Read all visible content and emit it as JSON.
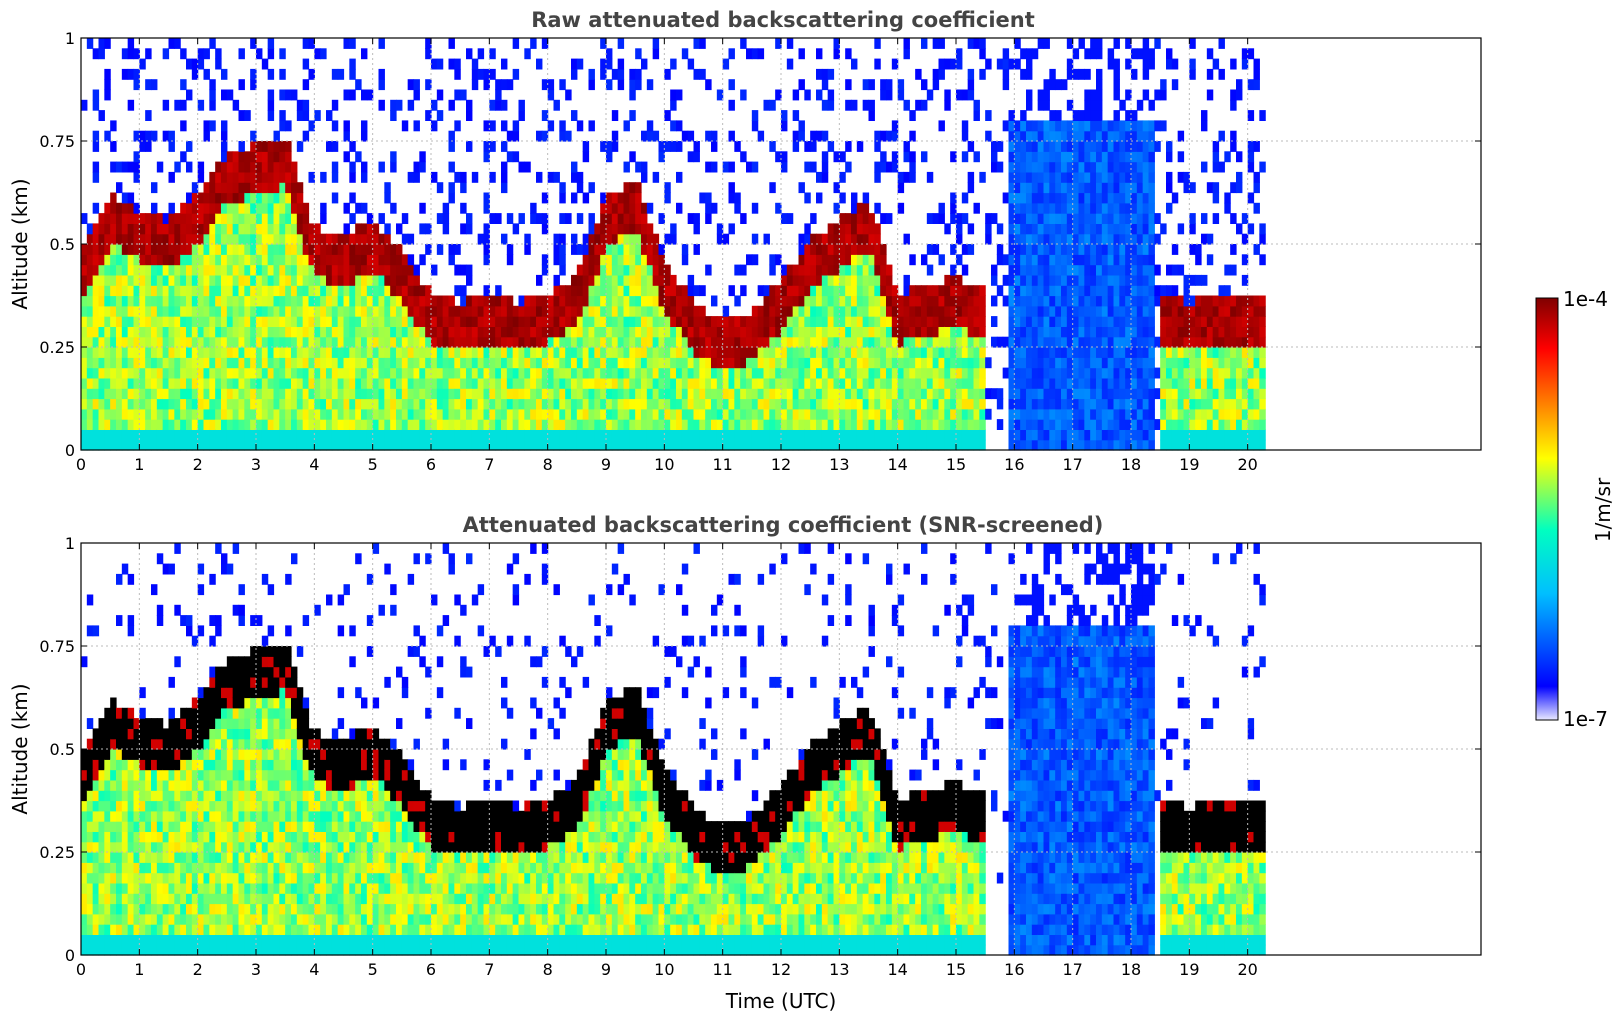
{
  "chart_data": [
    {
      "type": "heatmap",
      "title": "Raw attenuated backscattering coefficient",
      "xlabel": "",
      "ylabel": "Altitude (km)",
      "xlim": [
        0,
        24
      ],
      "ylim": [
        0,
        1
      ],
      "xticks": [
        "0",
        "1",
        "2",
        "3",
        "4",
        "5",
        "6",
        "7",
        "8",
        "9",
        "10",
        "11",
        "12",
        "13",
        "14",
        "15",
        "16",
        "17",
        "18",
        "19",
        "20"
      ],
      "yticks": [
        "0",
        "0.25",
        "0.5",
        "0.75",
        "1"
      ],
      "grid": true,
      "data_end_time": 20.3,
      "layer_altitude_km": [
        [
          0.0,
          0.42
        ],
        [
          0.5,
          0.56
        ],
        [
          1.0,
          0.52
        ],
        [
          1.5,
          0.5
        ],
        [
          2.0,
          0.56
        ],
        [
          2.5,
          0.66
        ],
        [
          3.0,
          0.68
        ],
        [
          3.5,
          0.7
        ],
        [
          4.0,
          0.48
        ],
        [
          4.5,
          0.46
        ],
        [
          5.0,
          0.5
        ],
        [
          5.5,
          0.42
        ],
        [
          6.0,
          0.32
        ],
        [
          6.5,
          0.3
        ],
        [
          7.0,
          0.32
        ],
        [
          7.5,
          0.3
        ],
        [
          8.0,
          0.32
        ],
        [
          8.5,
          0.36
        ],
        [
          9.0,
          0.55
        ],
        [
          9.5,
          0.6
        ],
        [
          10.0,
          0.4
        ],
        [
          10.5,
          0.3
        ],
        [
          11.0,
          0.25
        ],
        [
          11.5,
          0.28
        ],
        [
          12.0,
          0.35
        ],
        [
          12.5,
          0.45
        ],
        [
          13.0,
          0.5
        ],
        [
          13.5,
          0.55
        ],
        [
          14.0,
          0.32
        ],
        [
          14.5,
          0.34
        ],
        [
          15.0,
          0.36
        ],
        [
          15.5,
          0.33
        ],
        [
          16.0,
          null
        ],
        [
          16.5,
          null
        ],
        [
          17.0,
          null
        ],
        [
          17.5,
          null
        ],
        [
          18.0,
          null
        ],
        [
          18.5,
          0.32
        ],
        [
          19.0,
          0.3
        ],
        [
          19.5,
          0.32
        ]
      ]
    },
    {
      "type": "heatmap",
      "title": "Attenuated backscattering coefficient (SNR-screened)",
      "xlabel": "Time (UTC)",
      "ylabel": "Altitude (km)",
      "xlim": [
        0,
        24
      ],
      "ylim": [
        0,
        1
      ],
      "xticks": [
        "0",
        "1",
        "2",
        "3",
        "4",
        "5",
        "6",
        "7",
        "8",
        "9",
        "10",
        "11",
        "12",
        "13",
        "14",
        "15",
        "16",
        "17",
        "18",
        "19",
        "20"
      ],
      "yticks": [
        "0",
        "0.25",
        "0.5",
        "0.75",
        "1"
      ],
      "grid": true,
      "data_end_time": 20.3
    }
  ],
  "colorbar": {
    "label": "1/m/sr",
    "max_label": "1e-4",
    "min_label": "1e-7",
    "colormap": "jet",
    "colors": [
      "#e8e8ff",
      "#0000ff",
      "#00bfff",
      "#00ffc0",
      "#ffff00",
      "#ff8000",
      "#ff0000",
      "#800000"
    ]
  }
}
